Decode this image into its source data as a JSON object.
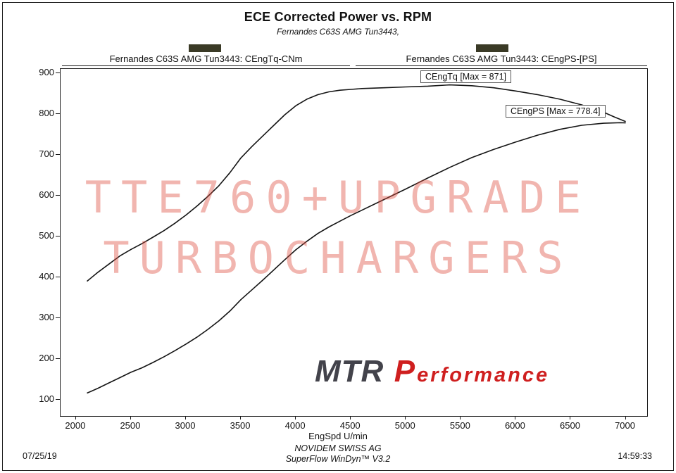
{
  "title": "ECE Corrected Power vs. RPM",
  "subtitle": "Fernandes C63S AMG Tun3443,",
  "legend": {
    "tq": {
      "label": "Fernandes C63S AMG Tun3443: CEngTq-CNm",
      "swatch": "#3a3a26"
    },
    "ps": {
      "label": "Fernandes C63S AMG Tun3443: CEngPS-[PS]",
      "swatch": "#3a3a26"
    }
  },
  "annotations": {
    "tq": {
      "text": "CEngTq [Max = 871]"
    },
    "ps": {
      "text": "CEngPS [Max = 778.4]"
    }
  },
  "watermark": {
    "line1": "TTE760+UPGRADE",
    "line2": "TURBOCHARGERS"
  },
  "logo": {
    "mtr": "MTR",
    "performance": "Performance"
  },
  "footer": {
    "xlabel": "EngSpd U/min",
    "company": "NOVIDEM SWISS AG",
    "software": "SuperFlow WinDyn™ V3.2",
    "date": "07/25/19",
    "time": "14:59:33"
  },
  "chart_data": {
    "type": "line",
    "title": "ECE Corrected Power vs. RPM",
    "xlabel": "EngSpd U/min",
    "ylabel": "",
    "xlim": [
      1860,
      7195
    ],
    "ylim": [
      60,
      910
    ],
    "x_ticks": [
      2000,
      2500,
      3000,
      3500,
      4000,
      4500,
      5000,
      5500,
      6000,
      6500,
      7000
    ],
    "y_ticks": [
      100,
      200,
      300,
      400,
      500,
      600,
      700,
      800,
      900
    ],
    "grid": false,
    "legend_position": "top",
    "line_color": "#141414",
    "series": [
      {
        "name": "CEngTq-CNm",
        "max": 871,
        "color": "#141414",
        "points": [
          [
            2100,
            390
          ],
          [
            2200,
            412
          ],
          [
            2300,
            432
          ],
          [
            2400,
            452
          ],
          [
            2500,
            468
          ],
          [
            2600,
            482
          ],
          [
            2700,
            498
          ],
          [
            2800,
            514
          ],
          [
            2900,
            532
          ],
          [
            3000,
            552
          ],
          [
            3100,
            574
          ],
          [
            3200,
            598
          ],
          [
            3300,
            624
          ],
          [
            3400,
            656
          ],
          [
            3500,
            692
          ],
          [
            3600,
            720
          ],
          [
            3700,
            746
          ],
          [
            3800,
            772
          ],
          [
            3900,
            798
          ],
          [
            4000,
            820
          ],
          [
            4100,
            836
          ],
          [
            4200,
            847
          ],
          [
            4300,
            854
          ],
          [
            4400,
            858
          ],
          [
            4500,
            860
          ],
          [
            4600,
            862
          ],
          [
            4800,
            864
          ],
          [
            5000,
            866
          ],
          [
            5200,
            868
          ],
          [
            5400,
            871
          ],
          [
            5600,
            869
          ],
          [
            5800,
            864
          ],
          [
            6000,
            856
          ],
          [
            6200,
            847
          ],
          [
            6400,
            836
          ],
          [
            6600,
            822
          ],
          [
            6800,
            804
          ],
          [
            6900,
            792
          ],
          [
            7000,
            781
          ]
        ]
      },
      {
        "name": "CEngPS-[PS]",
        "max": 778.4,
        "color": "#141414",
        "points": [
          [
            2100,
            116
          ],
          [
            2200,
            128
          ],
          [
            2300,
            141
          ],
          [
            2400,
            154
          ],
          [
            2500,
            167
          ],
          [
            2600,
            178
          ],
          [
            2700,
            191
          ],
          [
            2800,
            205
          ],
          [
            2900,
            220
          ],
          [
            3000,
            236
          ],
          [
            3100,
            253
          ],
          [
            3200,
            272
          ],
          [
            3300,
            293
          ],
          [
            3400,
            317
          ],
          [
            3500,
            345
          ],
          [
            3600,
            369
          ],
          [
            3700,
            393
          ],
          [
            3800,
            418
          ],
          [
            3900,
            443
          ],
          [
            4000,
            467
          ],
          [
            4100,
            488
          ],
          [
            4200,
            507
          ],
          [
            4300,
            523
          ],
          [
            4400,
            537
          ],
          [
            4500,
            551
          ],
          [
            4600,
            564
          ],
          [
            4800,
            590
          ],
          [
            5000,
            616
          ],
          [
            5200,
            643
          ],
          [
            5400,
            669
          ],
          [
            5600,
            693
          ],
          [
            5800,
            713
          ],
          [
            6000,
            731
          ],
          [
            6200,
            748
          ],
          [
            6400,
            762
          ],
          [
            6600,
            772
          ],
          [
            6800,
            777
          ],
          [
            6950,
            778.4
          ],
          [
            7000,
            778
          ]
        ]
      }
    ]
  }
}
